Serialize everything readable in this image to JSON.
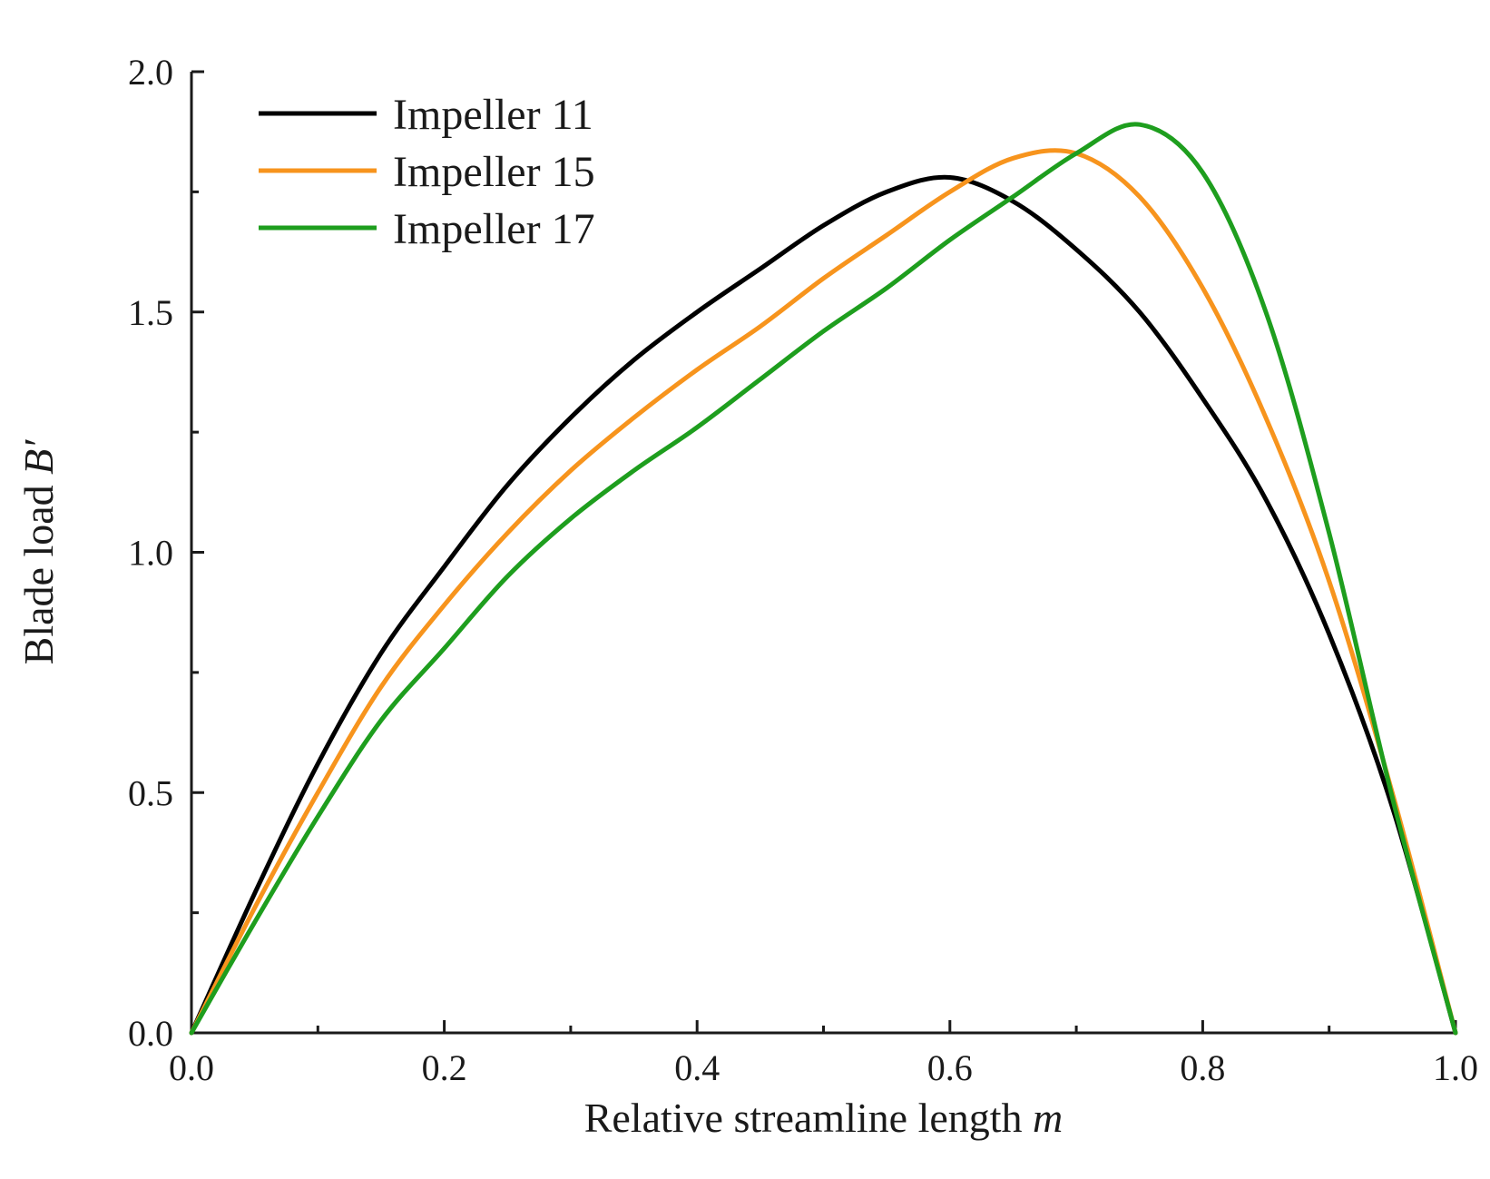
{
  "chart_data": {
    "type": "line",
    "title": "",
    "xlabel": "Relative streamline length",
    "xlabel_var": "m",
    "ylabel": "Blade load",
    "ylabel_var": "B′",
    "xlim": [
      0.0,
      1.0
    ],
    "ylim": [
      0.0,
      2.0
    ],
    "xticks": [
      "0.0",
      "0.2",
      "0.4",
      "0.6",
      "0.8",
      "1.0"
    ],
    "yticks": [
      "0.0",
      "0.5",
      "1.0",
      "1.5",
      "2.0"
    ],
    "grid": false,
    "legend_position": "top-left",
    "series": [
      {
        "name": "Impeller 11",
        "color": "#000000",
        "x": [
          0.0,
          0.05,
          0.1,
          0.15,
          0.2,
          0.25,
          0.3,
          0.35,
          0.4,
          0.45,
          0.5,
          0.55,
          0.6,
          0.65,
          0.7,
          0.75,
          0.8,
          0.85,
          0.9,
          0.95,
          1.0
        ],
        "y": [
          0.0,
          0.29,
          0.56,
          0.79,
          0.97,
          1.14,
          1.28,
          1.4,
          1.5,
          1.59,
          1.68,
          1.75,
          1.78,
          1.73,
          1.63,
          1.5,
          1.32,
          1.11,
          0.83,
          0.47,
          0.0
        ]
      },
      {
        "name": "Impeller 15",
        "color": "#f7941d",
        "x": [
          0.0,
          0.05,
          0.1,
          0.15,
          0.2,
          0.25,
          0.3,
          0.35,
          0.4,
          0.45,
          0.5,
          0.55,
          0.6,
          0.65,
          0.7,
          0.75,
          0.8,
          0.85,
          0.9,
          0.95,
          1.0
        ],
        "y": [
          0.0,
          0.26,
          0.5,
          0.72,
          0.89,
          1.04,
          1.17,
          1.28,
          1.38,
          1.47,
          1.57,
          1.66,
          1.75,
          1.82,
          1.83,
          1.74,
          1.55,
          1.28,
          0.94,
          0.5,
          0.0
        ]
      },
      {
        "name": "Impeller 17",
        "color": "#1e9e1e",
        "x": [
          0.0,
          0.05,
          0.1,
          0.15,
          0.2,
          0.25,
          0.3,
          0.35,
          0.4,
          0.45,
          0.5,
          0.55,
          0.6,
          0.65,
          0.7,
          0.75,
          0.8,
          0.85,
          0.9,
          0.95,
          1.0
        ],
        "y": [
          0.0,
          0.23,
          0.45,
          0.65,
          0.8,
          0.95,
          1.07,
          1.17,
          1.26,
          1.36,
          1.46,
          1.55,
          1.65,
          1.74,
          1.83,
          1.89,
          1.79,
          1.5,
          1.04,
          0.49,
          0.0
        ]
      }
    ]
  }
}
